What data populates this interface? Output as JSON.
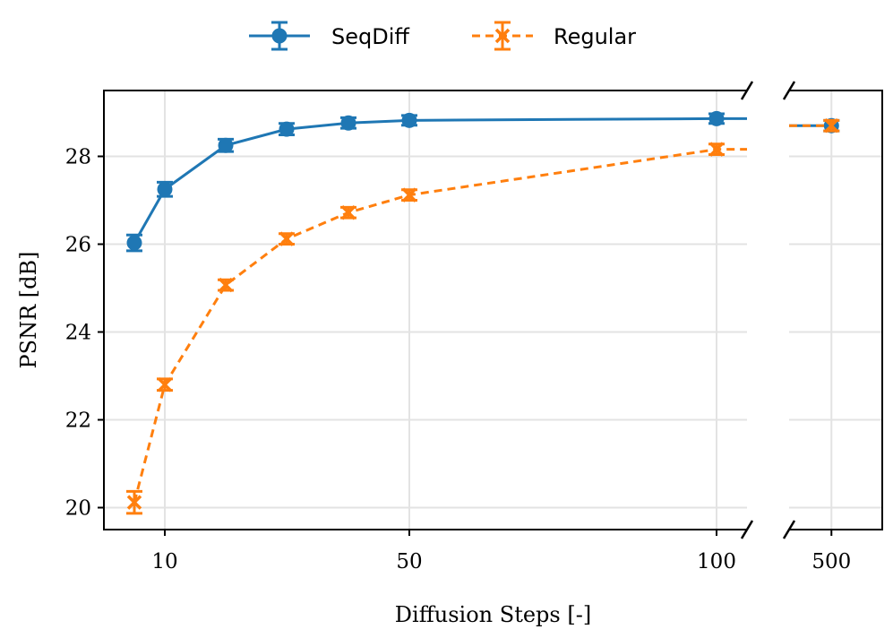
{
  "chart_data": {
    "type": "line",
    "xlabel": "Diffusion Steps [-]",
    "ylabel": "PSNR [dB]",
    "ylim": [
      19.5,
      29.5
    ],
    "yticks": [
      20,
      22,
      24,
      26,
      28
    ],
    "grid": true,
    "legend_position": "top-center",
    "broken_x_axis": true,
    "x_segments": [
      {
        "xlim": [
          2,
          106
        ],
        "xticks": [
          10,
          50,
          100
        ]
      },
      {
        "xlim": [
          475,
          530
        ],
        "xticks": [
          500
        ]
      }
    ],
    "series": [
      {
        "name": "SeqDiff",
        "color": "#1f77b4",
        "linestyle": "solid",
        "marker": "circle",
        "x": [
          5,
          10,
          20,
          30,
          40,
          50,
          100,
          500
        ],
        "y": [
          26.03,
          27.25,
          28.25,
          28.62,
          28.76,
          28.82,
          28.86,
          28.7
        ],
        "error": [
          0.18,
          0.16,
          0.14,
          0.13,
          0.12,
          0.11,
          0.11,
          0.12
        ]
      },
      {
        "name": "Regular",
        "color": "#ff7f0e",
        "linestyle": "dashed",
        "marker": "x",
        "x": [
          5,
          10,
          20,
          30,
          40,
          50,
          100,
          500
        ],
        "y": [
          20.12,
          22.8,
          25.07,
          26.12,
          26.72,
          27.12,
          28.16,
          28.7
        ],
        "error": [
          0.25,
          0.13,
          0.12,
          0.12,
          0.12,
          0.12,
          0.12,
          0.12
        ]
      }
    ]
  }
}
